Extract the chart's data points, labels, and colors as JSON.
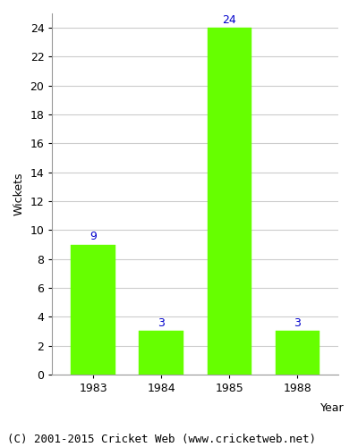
{
  "categories": [
    "1983",
    "1984",
    "1985",
    "1988"
  ],
  "values": [
    9,
    3,
    24,
    3
  ],
  "bar_color": "#66ff00",
  "bar_edge_color": "#66ff00",
  "label_color": "#0000cc",
  "ylabel": "Wickets",
  "xlabel": "Year",
  "ylim": [
    0,
    25
  ],
  "yticks": [
    0,
    2,
    4,
    6,
    8,
    10,
    12,
    14,
    16,
    18,
    20,
    22,
    24
  ],
  "grid_color": "#cccccc",
  "background_color": "#ffffff",
  "footer": "(C) 2001-2015 Cricket Web (www.cricketweb.net)",
  "label_fontsize": 9,
  "axis_fontsize": 9,
  "tick_fontsize": 9,
  "footer_fontsize": 9,
  "bar_width": 0.65
}
